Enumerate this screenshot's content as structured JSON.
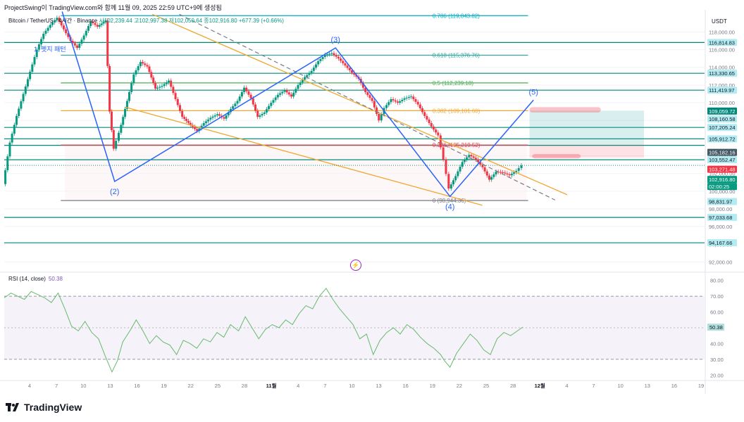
{
  "header": {
    "top_line": "ProjectSwing이 TradingView.com와 함께 11월 09, 2025 22:59 UTC+9에 생성됨",
    "symbol": "Bitcoin / TetherUS · 4시간 · Binance",
    "ohlc": "시102,239.44  고102,997.38  저102,050.64  종102,916.80  +677.39 (+0.66%)",
    "currency": "USDT",
    "pattern_label": "1. 펫지 패턴"
  },
  "rsi": {
    "label": "RSI (14, close)",
    "value": "50.38"
  },
  "logo": {
    "text": "TradingView"
  },
  "colors": {
    "up": "#089981",
    "down": "#f23645",
    "wave": "#2962ff",
    "channel": "#f0a830",
    "fib": "#26a69a",
    "rsi": "#7e57c2",
    "bolt": "#9c27b0"
  },
  "icons": {
    "event": "lightning-icon"
  },
  "chart_data": {
    "type": "candlestick",
    "symbol": "BTCUSDT",
    "interval": "4H",
    "y_range": [
      91000,
      120500
    ],
    "y_ticks": [
      92000,
      94000,
      96000,
      98000,
      100000,
      102000,
      104000,
      106000,
      108000,
      110000,
      112000,
      114000,
      116000,
      118000
    ],
    "y_tick_labels": [
      "92,000.00",
      "94,000.00",
      "96,000.00",
      "98,000.00",
      "100,000.00",
      "102,000.00",
      "104,000.00",
      "106,000.00",
      "108,000.00",
      "110,000.00",
      "112,000.00",
      "114,000.00",
      "116,000.00",
      "118,000.00"
    ],
    "x_labels": [
      "4",
      "7",
      "10",
      "13",
      "16",
      "19",
      "22",
      "25",
      "28",
      "11월",
      "4",
      "7",
      "10",
      "13",
      "16",
      "19",
      "22",
      "25",
      "28",
      "12월",
      "4",
      "7",
      "10",
      "13",
      "16",
      "19"
    ],
    "x_span_days": [
      3,
      55
    ],
    "price_series": [
      [
        3,
        100800
      ],
      [
        3.5,
        105500
      ],
      [
        4,
        108500
      ],
      [
        4.5,
        111000
      ],
      [
        5,
        113500
      ],
      [
        5.5,
        116000
      ],
      [
        6,
        117800
      ],
      [
        6.5,
        118800
      ],
      [
        7,
        119600
      ],
      [
        7.5,
        118300
      ],
      [
        8,
        117000
      ],
      [
        8.5,
        116200
      ],
      [
        9,
        117600
      ],
      [
        9.5,
        119200
      ],
      [
        10,
        118600
      ],
      [
        10.6,
        119300
      ],
      [
        10.9,
        109000
      ],
      [
        11.2,
        104800
      ],
      [
        11.6,
        106600
      ],
      [
        12.2,
        110200
      ],
      [
        12.7,
        113200
      ],
      [
        13.2,
        114600
      ],
      [
        13.7,
        114100
      ],
      [
        14.3,
        111600
      ],
      [
        14.8,
        111900
      ],
      [
        15.3,
        112500
      ],
      [
        15.8,
        110400
      ],
      [
        16.3,
        108400
      ],
      [
        16.9,
        107500
      ],
      [
        17.4,
        106800
      ],
      [
        17.9,
        107700
      ],
      [
        18.4,
        108300
      ],
      [
        18.9,
        108700
      ],
      [
        19.4,
        108200
      ],
      [
        19.9,
        109300
      ],
      [
        20.4,
        110200
      ],
      [
        20.9,
        111700
      ],
      [
        21.4,
        110500
      ],
      [
        21.9,
        108400
      ],
      [
        22.4,
        108900
      ],
      [
        22.9,
        110000
      ],
      [
        23.4,
        110900
      ],
      [
        23.9,
        111400
      ],
      [
        24.4,
        110700
      ],
      [
        24.9,
        112000
      ],
      [
        25.4,
        112900
      ],
      [
        25.9,
        113600
      ],
      [
        26.4,
        114700
      ],
      [
        26.9,
        115400
      ],
      [
        27.4,
        115600
      ],
      [
        27.9,
        115000
      ],
      [
        28.4,
        114200
      ],
      [
        28.9,
        113400
      ],
      [
        29.4,
        112700
      ],
      [
        29.9,
        111200
      ],
      [
        30.4,
        110200
      ],
      [
        30.9,
        108000
      ],
      [
        31.3,
        109400
      ],
      [
        31.8,
        110400
      ],
      [
        32.3,
        110000
      ],
      [
        32.8,
        110500
      ],
      [
        33.3,
        110700
      ],
      [
        33.8,
        109800
      ],
      [
        34.3,
        108500
      ],
      [
        34.8,
        107300
      ],
      [
        35.3,
        106300
      ],
      [
        35.7,
        103600
      ],
      [
        36.1,
        100300
      ],
      [
        36.6,
        101700
      ],
      [
        37.1,
        103300
      ],
      [
        37.6,
        104100
      ],
      [
        38.1,
        103600
      ],
      [
        38.6,
        102700
      ],
      [
        39.1,
        101300
      ],
      [
        39.6,
        102200
      ],
      [
        40.1,
        102100
      ],
      [
        40.6,
        101800
      ],
      [
        41.1,
        102300
      ],
      [
        41.5,
        102917
      ]
    ],
    "fib_levels": [
      {
        "label": "0.786 (119,843.82)",
        "price": 119843.82
      },
      {
        "label": "0.618 (115,376.76)",
        "price": 115376.76
      },
      {
        "label": "0.5 (112,239.18)",
        "price": 112239.18
      },
      {
        "label": "0.382 (109,101.60)",
        "price": 109101.6
      },
      {
        "label": "0.236 (105,219.52)",
        "price": 105219.52
      },
      {
        "label": "0 (98,944.36)",
        "price": 98944.36
      }
    ],
    "horizontal_levels": [
      116814.83,
      113330.65,
      111419.97,
      107205.24,
      105912.72,
      105182.16,
      103552.47,
      97033.68,
      94167.66
    ],
    "price_tags": [
      {
        "text": "116,814.83",
        "price": 116814.83
      },
      {
        "text": "113,330.65",
        "price": 113330.65
      },
      {
        "text": "111,419.97",
        "price": 111419.97
      },
      {
        "text": "109,059.72",
        "price": 109059.72
      },
      {
        "text": "108,160.58",
        "price": 108160.58
      },
      {
        "text": "107,205.24",
        "price": 107205.24
      },
      {
        "text": "105,912.72",
        "price": 105912.72
      },
      {
        "text": "105,182.16",
        "price": 105182.16
      },
      {
        "text": "103,552.47",
        "price": 103552.47
      },
      {
        "text": "103,271.48",
        "price": 103271.48
      },
      {
        "text": "102,916.80",
        "price": 102916.8
      },
      {
        "text": "02:00:25",
        "price": 102916.8
      },
      {
        "text": "98,831.97",
        "price": 98831.97
      },
      {
        "text": "97,033.68",
        "price": 97033.68
      },
      {
        "text": "94,167.66",
        "price": 94167.66
      }
    ],
    "elliott_waves": [
      {
        "label": "(2)",
        "day": 11.2,
        "price": 101100
      },
      {
        "label": "(3)",
        "day": 27.6,
        "price": 116200
      },
      {
        "label": "(4)",
        "day": 36.1,
        "price": 99400
      },
      {
        "label": "(5)",
        "day": 42.3,
        "price": 110300
      }
    ],
    "wave_start": {
      "day": 7.3,
      "price": 120300
    },
    "channel_upper": [
      [
        14,
        120000
      ],
      [
        44.8,
        99600
      ]
    ],
    "channel_lower": [
      [
        12,
        109500
      ],
      [
        38.5,
        98400
      ]
    ],
    "dashed_trend": [
      [
        16,
        120000
      ],
      [
        43.9,
        99000
      ]
    ],
    "rsi": {
      "label": "RSI (14, close)",
      "range": [
        17,
        83
      ],
      "bands": [
        30,
        70
      ],
      "mid": 50,
      "y_ticks": [
        20,
        30,
        40,
        50,
        60,
        70,
        80
      ],
      "y_tick_labels": [
        "20.00",
        "30.00",
        "40.00",
        "50.00",
        "60.00",
        "70.00",
        "80.00"
      ],
      "current": 50.38,
      "values": [
        [
          3,
          69
        ],
        [
          3.5,
          72
        ],
        [
          4,
          70
        ],
        [
          4.5,
          68
        ],
        [
          5,
          73
        ],
        [
          5.5,
          71
        ],
        [
          6,
          69
        ],
        [
          6.5,
          66
        ],
        [
          7,
          72
        ],
        [
          7.5,
          62
        ],
        [
          8,
          51
        ],
        [
          8.5,
          48
        ],
        [
          9,
          54
        ],
        [
          9.5,
          47
        ],
        [
          10,
          43
        ],
        [
          10.5,
          32
        ],
        [
          11,
          22
        ],
        [
          11.4,
          29
        ],
        [
          11.8,
          41
        ],
        [
          12.4,
          49
        ],
        [
          12.8,
          55
        ],
        [
          13.3,
          48
        ],
        [
          13.8,
          40
        ],
        [
          14.3,
          45
        ],
        [
          14.8,
          41
        ],
        [
          15.3,
          39
        ],
        [
          15.8,
          33
        ],
        [
          16.3,
          42
        ],
        [
          16.8,
          40
        ],
        [
          17.3,
          37
        ],
        [
          17.8,
          43
        ],
        [
          18.3,
          41
        ],
        [
          18.8,
          47
        ],
        [
          19.3,
          44
        ],
        [
          19.8,
          52
        ],
        [
          20.4,
          48
        ],
        [
          20.9,
          57
        ],
        [
          21.4,
          50
        ],
        [
          21.9,
          43
        ],
        [
          22.4,
          49
        ],
        [
          22.9,
          52
        ],
        [
          23.4,
          50
        ],
        [
          23.9,
          55
        ],
        [
          24.4,
          52
        ],
        [
          24.9,
          59
        ],
        [
          25.4,
          64
        ],
        [
          25.9,
          62
        ],
        [
          26.4,
          70
        ],
        [
          26.9,
          75
        ],
        [
          27.4,
          68
        ],
        [
          27.9,
          62
        ],
        [
          28.4,
          57
        ],
        [
          28.9,
          52
        ],
        [
          29.4,
          43
        ],
        [
          29.9,
          46
        ],
        [
          30.4,
          33
        ],
        [
          30.9,
          42
        ],
        [
          31.4,
          47
        ],
        [
          31.9,
          50
        ],
        [
          32.4,
          46
        ],
        [
          32.9,
          52
        ],
        [
          33.4,
          49
        ],
        [
          33.9,
          44
        ],
        [
          34.4,
          40
        ],
        [
          34.9,
          37
        ],
        [
          35.4,
          33
        ],
        [
          35.7,
          29
        ],
        [
          36.1,
          25
        ],
        [
          36.6,
          34
        ],
        [
          37.1,
          40
        ],
        [
          37.6,
          46
        ],
        [
          38.1,
          42
        ],
        [
          38.6,
          36
        ],
        [
          39.1,
          33
        ],
        [
          39.6,
          43
        ],
        [
          40.1,
          47
        ],
        [
          40.6,
          45
        ],
        [
          41.1,
          48
        ],
        [
          41.5,
          50.38
        ]
      ]
    }
  }
}
